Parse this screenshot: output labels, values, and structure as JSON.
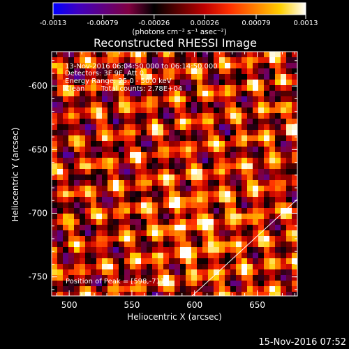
{
  "colorbar": {
    "tick_labels": [
      "-0.0013",
      "-0.00079",
      "-0.00026",
      "0.00026",
      "0.00079",
      "0.0013"
    ],
    "unit_label": "(photons cm⁻² s⁻¹ asec⁻²)",
    "range": [
      -0.0013,
      0.0013
    ],
    "colormap": [
      "#0000ff",
      "#4000c0",
      "#600080",
      "#800040",
      "#000000",
      "#600000",
      "#c00000",
      "#ff3000",
      "#ff8000",
      "#ffd000",
      "#ffffff"
    ]
  },
  "chart_data": {
    "type": "heatmap",
    "title": "Reconstructed RHESSI Image",
    "xlabel": "Heliocentric X (arcsec)",
    "ylabel": "Heliocentric Y (arcsec)",
    "xlim": [
      486,
      682
    ],
    "ylim": [
      -765,
      -573
    ],
    "xticks": [
      500,
      550,
      600,
      650
    ],
    "yticks": [
      -600,
      -650,
      -700,
      -750
    ],
    "grid": false,
    "annotations": [
      "13-Nov-2016 06:04:50.000 to 06:14:50.000",
      "Detectors: 3F 9F, Att 0",
      "Energy Range: 25.0 - 50.0 keV",
      "Clean",
      "Total counts: 2.78E+04"
    ],
    "peak_label": "Position of Peak = [598,-711]",
    "peak": [
      598,
      -711
    ],
    "limb_line": [
      [
        598,
        -765
      ],
      [
        682,
        -689
      ]
    ],
    "colors": {
      "frame": "#ffffff",
      "limb": "#ffffff"
    }
  },
  "footer": {
    "timestamp": "15-Nov-2016 07:52"
  }
}
